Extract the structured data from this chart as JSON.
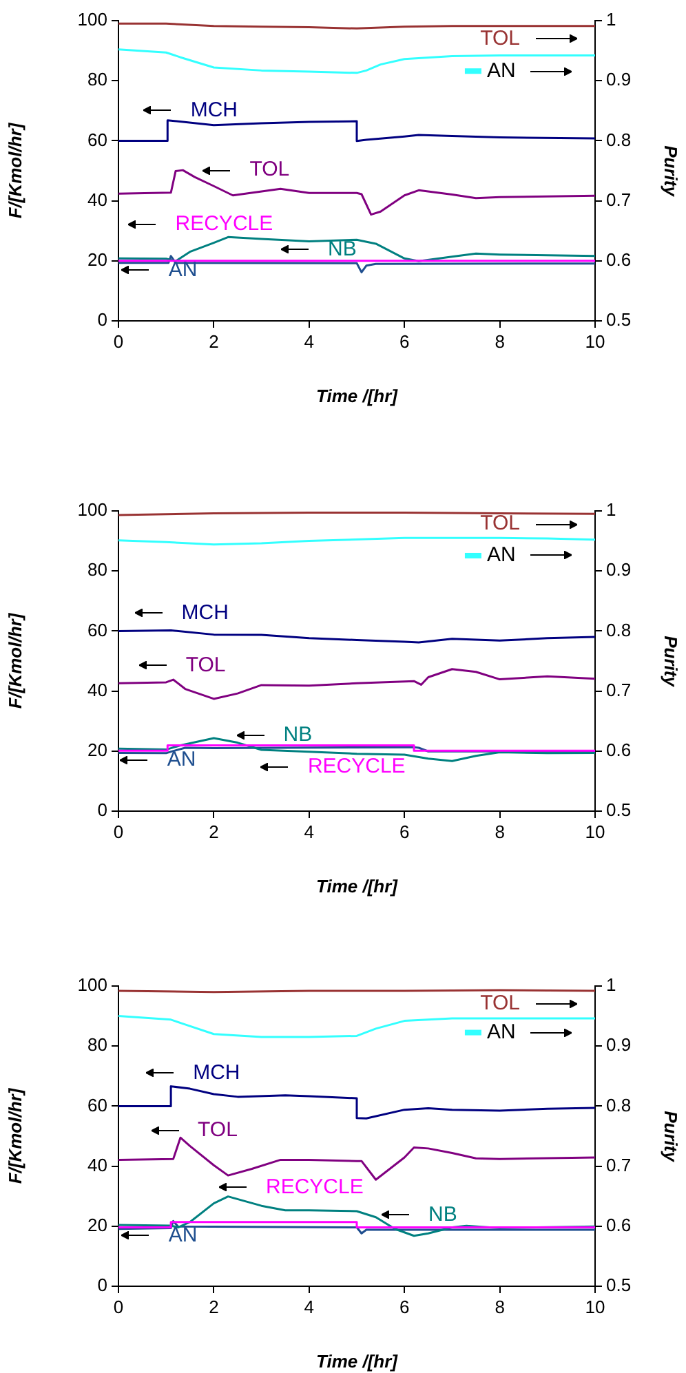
{
  "chart_data": [
    {
      "type": "line",
      "xlabel": "Time /[hr]",
      "ylabel": "F/[Kmol/hr]",
      "y2label": "Purity",
      "xlim": [
        0,
        10
      ],
      "xticks": [
        0,
        2,
        4,
        6,
        8,
        10
      ],
      "ylim": [
        0,
        100
      ],
      "yticks": [
        0,
        20,
        40,
        60,
        80,
        100
      ],
      "y2lim": [
        0.5,
        1
      ],
      "y2ticks": [
        0.5,
        0.6,
        0.7,
        0.8,
        0.9,
        1
      ],
      "marker": "none",
      "series": [
        {
          "name": "TOL",
          "color": "#993333",
          "axis": "y2",
          "x": [
            0,
            1,
            2,
            3,
            4,
            5,
            6,
            7,
            10
          ],
          "values": [
            0.995,
            0.995,
            0.991,
            0.99,
            0.989,
            0.987,
            0.99,
            0.991,
            0.991
          ]
        },
        {
          "name": "AN",
          "color": "#33ffff",
          "axis": "y2",
          "x": [
            0,
            1,
            1.3,
            2,
            3,
            4,
            5,
            5.2,
            5.5,
            6,
            7,
            8,
            10
          ],
          "values": [
            0.952,
            0.947,
            0.939,
            0.922,
            0.917,
            0.915,
            0.913,
            0.917,
            0.927,
            0.936,
            0.941,
            0.942,
            0.942
          ]
        },
        {
          "name": "MCH",
          "color": "#000080",
          "x": [
            0,
            1.03,
            1.03,
            2,
            3,
            4,
            5,
            5,
            5.2,
            6,
            6.3,
            7,
            8,
            10
          ],
          "values": [
            60,
            60,
            66.8,
            65.2,
            65.8,
            66.3,
            66.5,
            59.9,
            60.3,
            61.4,
            61.9,
            61.6,
            61.1,
            60.8
          ]
        },
        {
          "name": "TOL",
          "color": "#800080",
          "x": [
            0,
            1.1,
            1.2,
            1.35,
            1.6,
            2,
            2.4,
            3.4,
            4,
            5,
            5.1,
            5.3,
            5.5,
            6,
            6.3,
            7,
            7.5,
            8,
            10
          ],
          "values": [
            42.4,
            42.7,
            49.9,
            50.2,
            47.9,
            44.9,
            41.8,
            44,
            42.6,
            42.6,
            42.2,
            35.4,
            36.4,
            41.8,
            43.5,
            42.1,
            40.9,
            41.2,
            41.7
          ]
        },
        {
          "name": "RECYCLE",
          "color": "#ff00ff",
          "x": [
            0,
            10
          ],
          "values": [
            20,
            20
          ]
        },
        {
          "name": "NB",
          "color": "#008080",
          "x": [
            0,
            1,
            1.2,
            1.5,
            2,
            2.3,
            3,
            4,
            5,
            5.4,
            6,
            6.3,
            7,
            7.5,
            8,
            10
          ],
          "values": [
            20.8,
            20.7,
            19.9,
            23,
            26,
            27.9,
            27.3,
            26.5,
            27,
            25.7,
            20.8,
            19.9,
            21.4,
            22.4,
            22.1,
            21.6
          ]
        },
        {
          "name": "AN",
          "color": "#1f4f8f",
          "x": [
            0,
            1.05,
            1.1,
            1.2,
            5,
            5.1,
            5.2,
            5.4,
            10
          ],
          "values": [
            19.3,
            19.3,
            21.6,
            19.3,
            19.2,
            16.2,
            18.4,
            19,
            19.1
          ]
        }
      ]
    },
    {
      "type": "line",
      "xlabel": "Time /[hr]",
      "ylabel": "F/[Kmol/hr]",
      "y2label": "Purity",
      "xlim": [
        0,
        10
      ],
      "xticks": [
        0,
        2,
        4,
        6,
        8,
        10
      ],
      "ylim": [
        0,
        100
      ],
      "yticks": [
        0,
        20,
        40,
        60,
        80,
        100
      ],
      "y2lim": [
        0.5,
        1
      ],
      "y2ticks": [
        0.5,
        0.6,
        0.7,
        0.8,
        0.9,
        1
      ],
      "marker": "none",
      "series": [
        {
          "name": "TOL",
          "color": "#993333",
          "axis": "y2",
          "x": [
            0,
            2,
            4,
            6,
            8,
            10
          ],
          "values": [
            0.993,
            0.996,
            0.997,
            0.997,
            0.996,
            0.995
          ]
        },
        {
          "name": "AN",
          "color": "#33ffff",
          "axis": "y2",
          "x": [
            0,
            1,
            2,
            3,
            4,
            6,
            7,
            8,
            9,
            10
          ],
          "values": [
            0.951,
            0.948,
            0.944,
            0.946,
            0.95,
            0.955,
            0.955,
            0.955,
            0.954,
            0.952
          ]
        },
        {
          "name": "MCH",
          "color": "#000080",
          "x": [
            0,
            1.1,
            2,
            3,
            4,
            5,
            6,
            6.3,
            7,
            8,
            9,
            10
          ],
          "values": [
            60,
            60.2,
            58.8,
            58.7,
            57.6,
            57,
            56.4,
            56.2,
            57.4,
            56.8,
            57.6,
            58
          ]
        },
        {
          "name": "TOL",
          "color": "#800080",
          "x": [
            0,
            1,
            1.15,
            1.4,
            2,
            2.5,
            3,
            4,
            5,
            6.2,
            6.35,
            6.5,
            7,
            7.5,
            8,
            9,
            10
          ],
          "values": [
            42.6,
            42.9,
            43.8,
            40.7,
            37.4,
            39.2,
            42,
            41.8,
            42.6,
            43.3,
            42.1,
            44.6,
            47.3,
            46.4,
            43.9,
            44.9,
            44.1
          ]
        },
        {
          "name": "RECYCLE",
          "color": "#ff00ff",
          "x": [
            0,
            1.03,
            1.03,
            6.2,
            6.2,
            10
          ],
          "values": [
            20.1,
            20.1,
            21.9,
            21.9,
            20.1,
            20.1
          ]
        },
        {
          "name": "NB",
          "color": "#008080",
          "x": [
            0,
            1,
            1.3,
            2,
            2.5,
            3,
            4,
            5,
            6,
            6.5,
            7,
            7.5,
            8,
            9,
            10
          ],
          "values": [
            20.8,
            20.5,
            21.9,
            24.3,
            22.8,
            20.4,
            19.8,
            19.1,
            18.8,
            17.5,
            16.7,
            18.4,
            19.6,
            19.3,
            19.4
          ]
        },
        {
          "name": "AN",
          "color": "#1f4f8f",
          "x": [
            0,
            1,
            1.1,
            1.4,
            2,
            6.2,
            6.3,
            6.5,
            10
          ],
          "values": [
            19.4,
            19.3,
            19.8,
            21.1,
            21,
            21.3,
            21.1,
            19.9,
            19.9
          ]
        }
      ]
    },
    {
      "type": "line",
      "xlabel": "Time /[hr]",
      "ylabel": "F/[Kmol/hr]",
      "y2label": "Purity",
      "xlim": [
        0,
        10
      ],
      "xticks": [
        0,
        2,
        4,
        6,
        8,
        10
      ],
      "ylim": [
        0,
        100
      ],
      "yticks": [
        0,
        20,
        40,
        60,
        80,
        100
      ],
      "y2lim": [
        0.5,
        1
      ],
      "y2ticks": [
        0.5,
        0.6,
        0.7,
        0.8,
        0.9,
        1
      ],
      "marker": "none",
      "series": [
        {
          "name": "TOL",
          "color": "#993333",
          "axis": "y2",
          "x": [
            0,
            2,
            4,
            6,
            8,
            10
          ],
          "values": [
            0.992,
            0.99,
            0.992,
            0.992,
            0.993,
            0.992
          ]
        },
        {
          "name": "AN",
          "color": "#33ffff",
          "axis": "y2",
          "x": [
            0,
            1.1,
            1.4,
            2,
            3,
            4,
            5,
            5.4,
            6,
            7,
            8,
            10
          ],
          "values": [
            0.95,
            0.944,
            0.936,
            0.92,
            0.915,
            0.915,
            0.917,
            0.929,
            0.942,
            0.946,
            0.946,
            0.946
          ]
        },
        {
          "name": "MCH",
          "color": "#000080",
          "x": [
            0,
            1.1,
            1.1,
            1.5,
            2,
            2.5,
            3.5,
            4,
            5,
            5,
            5.2,
            6,
            6.5,
            7,
            8,
            9,
            10
          ],
          "values": [
            60,
            60,
            66.6,
            65.8,
            64,
            63.1,
            63.6,
            63.3,
            62.6,
            56,
            55.9,
            58.8,
            59.3,
            58.8,
            58.5,
            59.1,
            59.4
          ]
        },
        {
          "name": "TOL",
          "color": "#800080",
          "x": [
            0,
            1.15,
            1.3,
            1.5,
            2,
            2.3,
            2.8,
            3.4,
            4,
            5,
            5.1,
            5.4,
            6,
            6.2,
            6.5,
            7,
            7.5,
            8,
            10
          ],
          "values": [
            42.1,
            42.4,
            49.5,
            46.7,
            40.3,
            36.9,
            39.1,
            42.1,
            42.1,
            41.7,
            41.7,
            35.5,
            42.9,
            46.2,
            45.9,
            44.4,
            42.6,
            42.4,
            42.9
          ]
        },
        {
          "name": "RECYCLE",
          "color": "#ff00ff",
          "x": [
            0,
            1.1,
            1.1,
            5,
            5,
            10
          ],
          "values": [
            19.6,
            19.6,
            21.4,
            21.4,
            19.6,
            19.6
          ]
        },
        {
          "name": "NB",
          "color": "#008080",
          "x": [
            0,
            1.1,
            1.25,
            1.5,
            2,
            2.3,
            3,
            3.5,
            4,
            5,
            5.4,
            5.8,
            6.2,
            6.5,
            7,
            7.3,
            8,
            10
          ],
          "values": [
            20.4,
            20.2,
            19.6,
            21.4,
            27.6,
            29.9,
            26.8,
            25.3,
            25.3,
            25,
            23,
            19.1,
            16.8,
            17.6,
            19.6,
            20.1,
            19.4,
            19.9
          ]
        },
        {
          "name": "AN",
          "color": "#1f4f8f",
          "x": [
            0,
            1.1,
            1.15,
            1.25,
            5,
            5.1,
            5.2,
            5.5,
            10
          ],
          "values": [
            19.1,
            19.4,
            21.7,
            19.9,
            19.6,
            17.6,
            18.8,
            18.8,
            18.8
          ]
        }
      ]
    }
  ]
}
